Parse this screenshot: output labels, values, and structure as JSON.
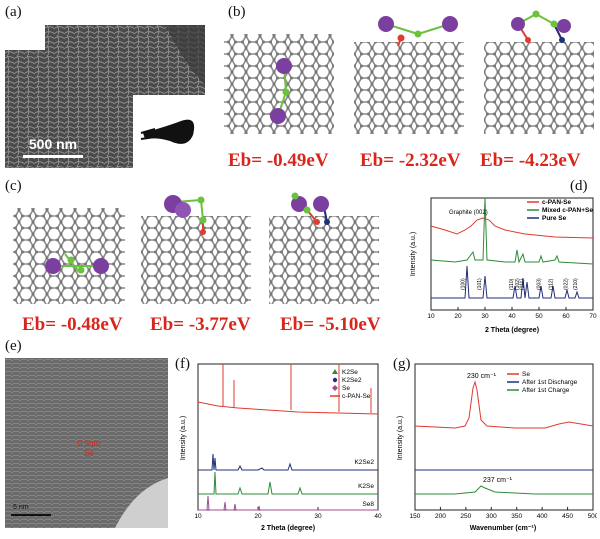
{
  "panel_labels": [
    "(a)",
    "(b)",
    "(c)",
    "(d)",
    "(e)",
    "(f)",
    "(g)"
  ],
  "sem": {
    "scale_bar": "500 nm"
  },
  "panel_b": {
    "energies": [
      "Eb= -0.49eV",
      "Eb= -2.32eV",
      "Eb= -4.23eV"
    ]
  },
  "panel_c": {
    "energies": [
      "Eb= -0.48eV",
      "Eb= -3.77eV",
      "Eb= -5.10eV"
    ]
  },
  "tem": {
    "annotation_1": "0.5nm",
    "annotation_2": "Se",
    "scale_bar": "5 nm"
  },
  "colors": {
    "red": "#e03b2f",
    "green": "#2e8b3a",
    "navy": "#1f2f7a",
    "purple": "#7b3fa0",
    "eb": "#d8261c"
  },
  "chart_data": [
    {
      "panel": "(d)",
      "type": "line",
      "xlabel": "2 Theta (degree)",
      "ylabel": "Intensity (a.u.)",
      "xlim": [
        10,
        70
      ],
      "xticks": [
        10,
        20,
        30,
        40,
        50,
        60,
        70
      ],
      "legend": [
        "c-PAN-Se",
        "Mixed c-PAN+Se",
        "Pure Se"
      ],
      "legend_position": "top-right",
      "annotation": "Graphite (002)",
      "peak_labels": [
        {
          "x": 23.5,
          "label": "(100)"
        },
        {
          "x": 29.7,
          "label": "(101)"
        },
        {
          "x": 41.4,
          "label": "(110)"
        },
        {
          "x": 43.7,
          "label": "(102)"
        },
        {
          "x": 45.4,
          "label": "(111)"
        },
        {
          "x": 51.7,
          "label": "(003)"
        },
        {
          "x": 56.1,
          "label": "(112)"
        },
        {
          "x": 61.6,
          "label": "(022)"
        },
        {
          "x": 65.2,
          "label": "(210)"
        }
      ]
    },
    {
      "panel": "(f)",
      "type": "line",
      "xlabel": "2 Theta (degree)",
      "ylabel": "Intensity (a.u.)",
      "xlim": [
        10,
        40
      ],
      "xticks": [
        10,
        20,
        30,
        40
      ],
      "legend": [
        "K2Se",
        "K2Se2",
        "Se",
        "c-PAN-Se"
      ],
      "legend_position": "top-right",
      "series_labels": [
        "c-PAN-Se",
        "K2Se2",
        "K2Se",
        "Se8"
      ]
    },
    {
      "panel": "(g)",
      "type": "line",
      "xlabel": "Wavenumber (cm⁻¹)",
      "ylabel": "Intensity (a.u.)",
      "xlim": [
        150,
        500
      ],
      "xticks": [
        150,
        200,
        250,
        300,
        350,
        400,
        450,
        500
      ],
      "legend": [
        "Se",
        "After 1st Discharge",
        "After 1st Charge"
      ],
      "legend_position": "top-right",
      "annotations": [
        "230 cm⁻¹",
        "237 cm⁻¹"
      ]
    }
  ]
}
